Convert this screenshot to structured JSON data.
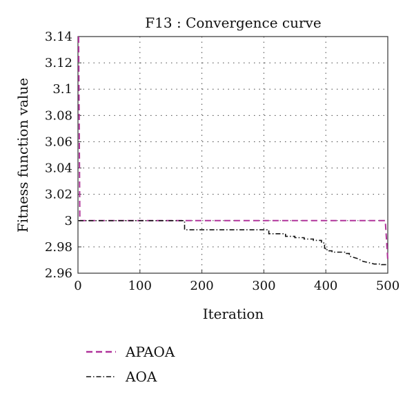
{
  "chart_data": {
    "type": "line",
    "title": "F13 : Convergence curve",
    "xlabel": "Iteration",
    "ylabel": "Fitness function value",
    "xlim": [
      0,
      500
    ],
    "ylim": [
      2.96,
      3.14
    ],
    "xticks": [
      0,
      100,
      200,
      300,
      400,
      500
    ],
    "xtick_labels": [
      "0",
      "100",
      "200",
      "300",
      "400",
      "500"
    ],
    "yticks": [
      2.96,
      2.98,
      3.0,
      3.02,
      3.04,
      3.06,
      3.08,
      3.1,
      3.12,
      3.14
    ],
    "ytick_labels": [
      "2.96",
      "2.98",
      "3",
      "3.02",
      "3.04",
      "3.06",
      "3.08",
      "3.1",
      "3.12",
      "3.14"
    ],
    "grid": true,
    "legend_position": "bottom-left-outside",
    "series": [
      {
        "name": "APAOA",
        "color": "#b0329a",
        "dash": "dashed",
        "points": [
          [
            1,
            3.14
          ],
          [
            3,
            3.0
          ],
          [
            496,
            3.0
          ],
          [
            500,
            2.97
          ]
        ]
      },
      {
        "name": "AOA",
        "color": "#111111",
        "dash": "dashdot",
        "points": [
          [
            1,
            3.0
          ],
          [
            172,
            3.0
          ],
          [
            172,
            2.993
          ],
          [
            308,
            2.993
          ],
          [
            308,
            2.99
          ],
          [
            335,
            2.99
          ],
          [
            335,
            2.988
          ],
          [
            350,
            2.988
          ],
          [
            350,
            2.987
          ],
          [
            365,
            2.987
          ],
          [
            365,
            2.986
          ],
          [
            380,
            2.986
          ],
          [
            380,
            2.985
          ],
          [
            393,
            2.985
          ],
          [
            393,
            2.983
          ],
          [
            398,
            2.983
          ],
          [
            398,
            2.979
          ],
          [
            402,
            2.979
          ],
          [
            402,
            2.977
          ],
          [
            410,
            2.977
          ],
          [
            410,
            2.976
          ],
          [
            432,
            2.976
          ],
          [
            432,
            2.975
          ],
          [
            438,
            2.975
          ],
          [
            438,
            2.973
          ],
          [
            445,
            2.972
          ],
          [
            452,
            2.971
          ],
          [
            460,
            2.969
          ],
          [
            470,
            2.968
          ],
          [
            478,
            2.967
          ],
          [
            490,
            2.967
          ],
          [
            490,
            2.9665
          ],
          [
            500,
            2.9665
          ]
        ]
      }
    ]
  }
}
